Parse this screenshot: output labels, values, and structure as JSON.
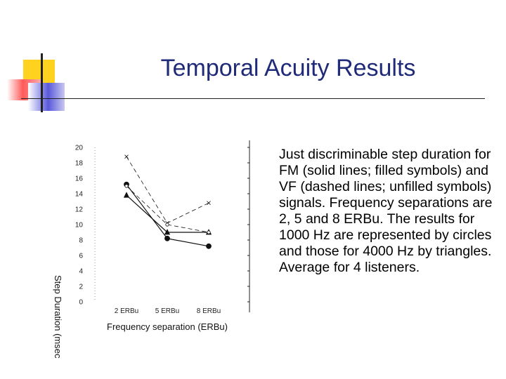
{
  "slide": {
    "title": "Temporal Acuity Results",
    "body": "Just discriminable step duration for FM (solid lines; filled symbols) and VF (dashed lines; unfilled symbols) signals. Frequency separations are 2, 5 and 8 ERBu. The results for 1000 Hz are represented by circles and those for 4000 Hz by triangles.  Average for 4 listeners."
  },
  "colors": {
    "title": "#1f2a78",
    "deco_yellow": "#ffd21f",
    "deco_red": "#ff5a5a",
    "deco_blue": "#5a5adc",
    "deco_line": "#222222"
  },
  "chart_data": {
    "type": "line",
    "xlabel": "Frequency separation (ERBu)",
    "ylabel": "Step Duration (msec",
    "categories": [
      "2 ERBu",
      "5 ERBu",
      "8 ERBu"
    ],
    "ylim": [
      0,
      20
    ],
    "yticks": [
      "0",
      "2",
      "4",
      "6",
      "8",
      "10",
      "12",
      "14",
      "16",
      "18",
      "20"
    ],
    "grid": false,
    "series": [
      {
        "values": [
          15.2,
          8.2,
          7.2
        ],
        "marker": "circle",
        "filled": true,
        "dashed": false
      },
      {
        "values": [
          13.8,
          9.0,
          9.0
        ],
        "marker": "triangle",
        "filled": true,
        "dashed": false
      },
      {
        "values": [
          18.8,
          10.2,
          12.8
        ],
        "marker": "x",
        "filled": false,
        "dashed": true
      },
      {
        "values": [
          15.0,
          10.0,
          9.0
        ],
        "marker": "circle",
        "filled": false,
        "dashed": true
      }
    ]
  }
}
